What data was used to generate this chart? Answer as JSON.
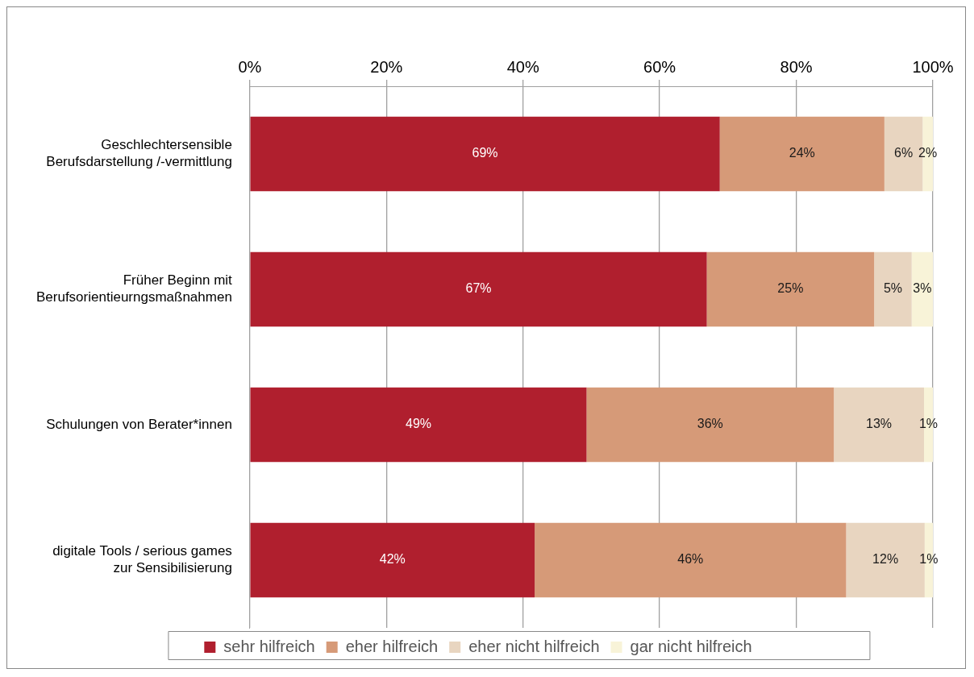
{
  "chart_data": {
    "type": "bar",
    "orientation": "horizontal",
    "stacked": true,
    "categories": [
      "Geschlechtersensible Berufsdarstellung /-vermittlung",
      "Früher Beginn mit Berufsorientieurngsmaßnahmen",
      "Schulungen von Berater*innen",
      "digitale Tools / serious games zur Sensibilisierung"
    ],
    "series": [
      {
        "name": "sehr hilfreich",
        "color": "#b01f2e",
        "values": [
          68.8,
          66.9,
          49.3,
          41.7
        ],
        "value_labels": [
          "69%",
          "67%",
          "49%",
          "42%"
        ]
      },
      {
        "name": "eher hilfreich",
        "color": "#d69a78",
        "values": [
          24.1,
          24.5,
          36.2,
          45.6
        ],
        "value_labels": [
          "24%",
          "25%",
          "36%",
          "46%"
        ]
      },
      {
        "name": "eher nicht hilfreich",
        "color": "#e8d5c0",
        "values": [
          5.6,
          5.5,
          13.2,
          11.5
        ],
        "value_labels": [
          "6%",
          "5%",
          "13%",
          "12%"
        ]
      },
      {
        "name": "gar nicht hilfreich",
        "color": "#f8f3d8",
        "values": [
          1.5,
          3.1,
          1.3,
          1.2
        ],
        "value_labels": [
          "2%",
          "3%",
          "1%",
          "1%"
        ]
      }
    ],
    "xlim": [
      0,
      100
    ],
    "xticks": [
      {
        "value": 0,
        "label": "0%"
      },
      {
        "value": 20,
        "label": "20%"
      },
      {
        "value": 40,
        "label": "40%"
      },
      {
        "value": 60,
        "label": "60%"
      },
      {
        "value": 80,
        "label": "80%"
      },
      {
        "value": 100,
        "label": "100%"
      }
    ],
    "grid": "x",
    "legend": "bottom"
  }
}
